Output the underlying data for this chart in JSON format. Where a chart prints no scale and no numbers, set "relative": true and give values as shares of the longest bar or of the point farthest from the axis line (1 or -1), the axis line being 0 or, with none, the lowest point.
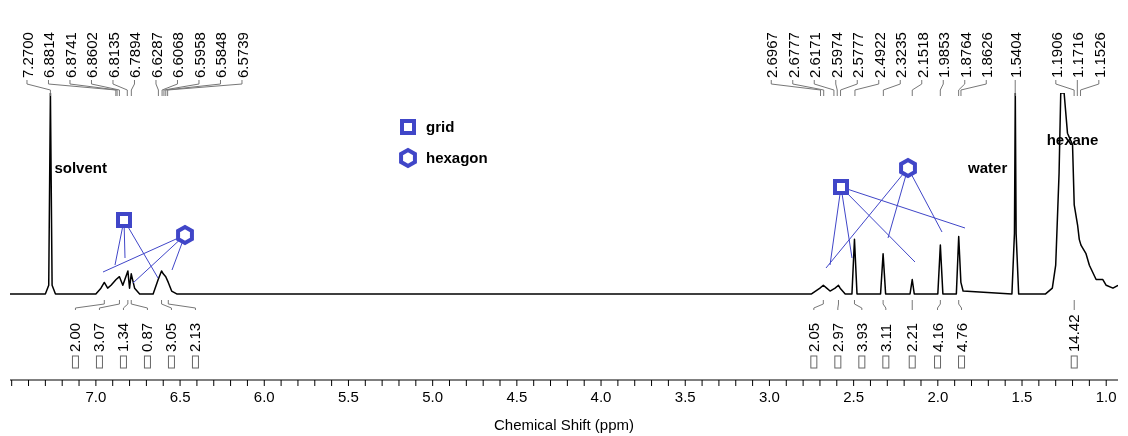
{
  "chart_data": {
    "type": "line",
    "relative": true,
    "xlabel": "Chemical Shift (ppm)",
    "xlim": [
      7.51,
      0.93
    ],
    "xticks": [
      {
        "value": 7.5,
        "label": null
      },
      {
        "value": 7.4,
        "label": null
      },
      {
        "value": 7.3,
        "label": null
      },
      {
        "value": 7.2,
        "label": null
      },
      {
        "value": 7.1,
        "label": null
      },
      {
        "value": 7,
        "label": "7.0"
      },
      {
        "value": 6.9,
        "label": null
      },
      {
        "value": 6.8,
        "label": null
      },
      {
        "value": 6.7,
        "label": null
      },
      {
        "value": 6.6,
        "label": null
      },
      {
        "value": 6.5,
        "label": "6.5"
      },
      {
        "value": 6.4,
        "label": null
      },
      {
        "value": 6.3,
        "label": null
      },
      {
        "value": 6.2,
        "label": null
      },
      {
        "value": 6.1,
        "label": null
      },
      {
        "value": 6,
        "label": "6.0"
      },
      {
        "value": 5.9,
        "label": null
      },
      {
        "value": 5.8,
        "label": null
      },
      {
        "value": 5.7,
        "label": null
      },
      {
        "value": 5.6,
        "label": null
      },
      {
        "value": 5.5,
        "label": "5.5"
      },
      {
        "value": 5.4,
        "label": null
      },
      {
        "value": 5.3,
        "label": null
      },
      {
        "value": 5.2,
        "label": null
      },
      {
        "value": 5.1,
        "label": null
      },
      {
        "value": 5,
        "label": "5.0"
      },
      {
        "value": 4.9,
        "label": null
      },
      {
        "value": 4.8,
        "label": null
      },
      {
        "value": 4.7,
        "label": null
      },
      {
        "value": 4.6,
        "label": null
      },
      {
        "value": 4.5,
        "label": "4.5"
      },
      {
        "value": 4.4,
        "label": null
      },
      {
        "value": 4.3,
        "label": null
      },
      {
        "value": 4.2,
        "label": null
      },
      {
        "value": 4.1,
        "label": null
      },
      {
        "value": 4,
        "label": "4.0"
      },
      {
        "value": 3.9,
        "label": null
      },
      {
        "value": 3.8,
        "label": null
      },
      {
        "value": 3.7,
        "label": null
      },
      {
        "value": 3.6,
        "label": null
      },
      {
        "value": 3.5,
        "label": "3.5"
      },
      {
        "value": 3.4,
        "label": null
      },
      {
        "value": 3.3,
        "label": null
      },
      {
        "value": 3.2,
        "label": null
      },
      {
        "value": 3.1,
        "label": null
      },
      {
        "value": 3,
        "label": "3.0"
      },
      {
        "value": 2.9,
        "label": null
      },
      {
        "value": 2.8,
        "label": null
      },
      {
        "value": 2.7,
        "label": null
      },
      {
        "value": 2.6,
        "label": null
      },
      {
        "value": 2.5,
        "label": "2.5"
      },
      {
        "value": 2.4,
        "label": null
      },
      {
        "value": 2.3,
        "label": null
      },
      {
        "value": 2.2,
        "label": null
      },
      {
        "value": 2.1,
        "label": null
      },
      {
        "value": 2,
        "label": "2.0"
      },
      {
        "value": 1.9,
        "label": null
      },
      {
        "value": 1.8,
        "label": null
      },
      {
        "value": 1.7,
        "label": null
      },
      {
        "value": 1.6,
        "label": null
      },
      {
        "value": 1.5,
        "label": "1.5"
      },
      {
        "value": 1.4,
        "label": null
      },
      {
        "value": 1.3,
        "label": null
      },
      {
        "value": 1.2,
        "label": null
      },
      {
        "value": 1.1,
        "label": null
      },
      {
        "value": 1,
        "label": "1.0"
      }
    ],
    "color": "#000000",
    "x": [
      7.51,
      7.3,
      7.28,
      7.27,
      7.26,
      7.24,
      7.0,
      6.97,
      6.95,
      6.93,
      6.91,
      6.88,
      6.86,
      6.84,
      6.81,
      6.8,
      6.79,
      6.77,
      6.74,
      6.66,
      6.63,
      6.61,
      6.6,
      6.585,
      6.57,
      6.55,
      6.52,
      2.75,
      2.7,
      2.68,
      2.66,
      2.64,
      2.61,
      2.59,
      2.58,
      2.55,
      2.51,
      2.495,
      2.48,
      2.34,
      2.325,
      2.31,
      2.165,
      2.152,
      2.14,
      2.0,
      1.985,
      1.97,
      1.89,
      1.876,
      1.863,
      1.85,
      1.56,
      1.545,
      1.54,
      1.535,
      1.52,
      1.36,
      1.32,
      1.3,
      1.28,
      1.27,
      1.25,
      1.23,
      1.2,
      1.19,
      1.17,
      1.16,
      1.15,
      1.12,
      1.1,
      1.06,
      1.02,
      1.0,
      0.96,
      0.93
    ],
    "values": [
      0.3,
      0.3,
      0.33,
      1,
      0.33,
      0.3,
      0.3,
      0.32,
      0.34,
      0.32,
      0.33,
      0.35,
      0.36,
      0.33,
      0.38,
      0.32,
      0.37,
      0.32,
      0.3,
      0.3,
      0.35,
      0.38,
      0.37,
      0.36,
      0.34,
      0.31,
      0.3,
      0.3,
      0.32,
      0.33,
      0.32,
      0.31,
      0.32,
      0.33,
      0.32,
      0.3,
      0.3,
      0.49,
      0.3,
      0.3,
      0.44,
      0.3,
      0.3,
      0.35,
      0.3,
      0.3,
      0.47,
      0.3,
      0.3,
      0.5,
      0.34,
      0.31,
      0.3,
      0.51,
      1,
      0.51,
      0.3,
      0.3,
      0.32,
      0.4,
      0.72,
      1,
      1,
      0.86,
      0.82,
      0.61,
      0.54,
      0.49,
      0.47,
      0.44,
      0.4,
      0.35,
      0.35,
      0.33,
      0.32,
      0.33
    ],
    "annotations": [
      {
        "text": "7.2700",
        "x": 7.27
      },
      {
        "text": "6.8814",
        "x": 6.8814
      },
      {
        "text": "6.8741",
        "x": 6.8741
      },
      {
        "text": "6.8602",
        "x": 6.8602
      },
      {
        "text": "6.8135",
        "x": 6.8135
      },
      {
        "text": "6.7894",
        "x": 6.7894
      },
      {
        "text": "6.6287",
        "x": 6.6287
      },
      {
        "text": "6.6068",
        "x": 6.6068
      },
      {
        "text": "6.5958",
        "x": 6.5958
      },
      {
        "text": "6.5848",
        "x": 6.5848
      },
      {
        "text": "6.5739",
        "x": 6.5739
      },
      {
        "text": "2.6967",
        "x": 2.6967
      },
      {
        "text": "2.6777",
        "x": 2.6777
      },
      {
        "text": "2.6171",
        "x": 2.6171
      },
      {
        "text": "2.5974",
        "x": 2.5974
      },
      {
        "text": "2.5777",
        "x": 2.5777
      },
      {
        "text": "2.4922",
        "x": 2.4922
      },
      {
        "text": "2.3235",
        "x": 2.3235
      },
      {
        "text": "2.1518",
        "x": 2.1518
      },
      {
        "text": "1.9853",
        "x": 1.9853
      },
      {
        "text": "1.8764",
        "x": 1.8764
      },
      {
        "text": "1.8626",
        "x": 1.8626
      },
      {
        "text": "1.5404",
        "x": 1.5404
      },
      {
        "text": "1.1906",
        "x": 1.1906
      },
      {
        "text": "1.1716",
        "x": 1.1716
      },
      {
        "text": "1.1526",
        "x": 1.1526
      },
      {
        "text": "2.00",
        "x": 6.95
      },
      {
        "text": "3.07",
        "x": 6.86
      },
      {
        "text": "1.34",
        "x": 6.81
      },
      {
        "text": "0.87",
        "x": 6.79
      },
      {
        "text": "3.05",
        "x": 6.61
      },
      {
        "text": "2.13",
        "x": 6.57
      },
      {
        "text": "2.05",
        "x": 2.68
      },
      {
        "text": "2.97",
        "x": 2.59
      },
      {
        "text": "3.93",
        "x": 2.495
      },
      {
        "text": "3.11",
        "x": 2.325
      },
      {
        "text": "2.21",
        "x": 2.152
      },
      {
        "text": "4.16",
        "x": 1.985
      },
      {
        "text": "4.76",
        "x": 1.876
      },
      {
        "text": "14.42",
        "x": 1.19
      },
      {
        "text": "solvent",
        "x": 7.27,
        "y": 0.72
      },
      {
        "text": "water",
        "x": 1.54,
        "y": 0.72
      },
      {
        "text": "hexane",
        "x": 1.2,
        "y": 0.82
      },
      "grid",
      "hexagon"
    ]
  }
}
